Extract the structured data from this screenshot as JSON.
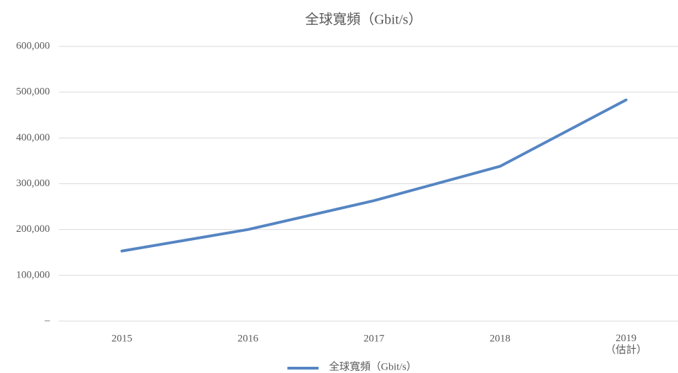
{
  "chart_data": {
    "type": "line",
    "title": "全球寬頻（Gbit/s）",
    "categories": [
      "2015",
      "2016",
      "2017",
      "2018",
      "2019\n（估計）"
    ],
    "series": [
      {
        "name": "全球寬頻（Gbit/s）",
        "color": "#5585c3",
        "values": [
          153000,
          200000,
          263000,
          338000,
          483000
        ]
      }
    ],
    "ylim": [
      0,
      600000
    ],
    "yticks": [
      {
        "value": 0,
        "label": "–"
      },
      {
        "value": 100000,
        "label": "100,000"
      },
      {
        "value": 200000,
        "label": "200,000"
      },
      {
        "value": 300000,
        "label": "300,000"
      },
      {
        "value": 400000,
        "label": "400,000"
      },
      {
        "value": 500000,
        "label": "500,000"
      },
      {
        "value": 600000,
        "label": "600,000"
      }
    ],
    "grid": true,
    "legend": "bottom"
  }
}
